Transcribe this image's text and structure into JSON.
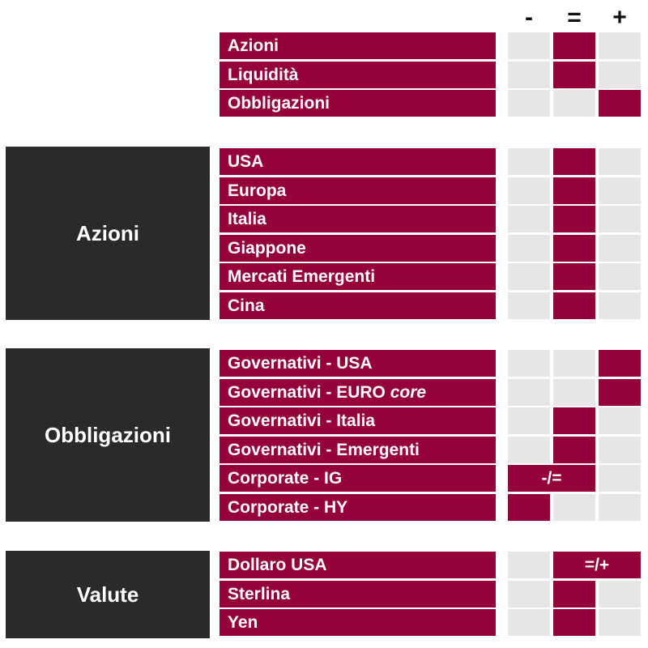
{
  "header": {
    "minus": "-",
    "equal": "=",
    "plus": "+"
  },
  "summary": [
    {
      "label": "Azioni",
      "marks": [
        "",
        "=",
        ""
      ]
    },
    {
      "label": "Liquidità",
      "marks": [
        "",
        "=",
        ""
      ]
    },
    {
      "label": "Obbligazioni",
      "marks": [
        "",
        "",
        "+"
      ]
    }
  ],
  "groups": [
    {
      "category": "Azioni",
      "rows": [
        {
          "label": "USA",
          "rating": "="
        },
        {
          "label": "Europa",
          "rating": "="
        },
        {
          "label": "Italia",
          "rating": "="
        },
        {
          "label": "Giappone",
          "rating": "="
        },
        {
          "label": "Mercati Emergenti",
          "rating": "="
        },
        {
          "label": "Cina",
          "rating": "="
        }
      ]
    },
    {
      "category": "Obbligazioni",
      "rows": [
        {
          "label": "Governativi - USA",
          "rating": "+"
        },
        {
          "label_main": "Governativi - EURO ",
          "label_italic": "core",
          "rating": "+"
        },
        {
          "label": "Governativi - Italia",
          "rating": "="
        },
        {
          "label": "Governativi - Emergenti",
          "rating": "="
        },
        {
          "label": "Corporate - IG",
          "rating": "-/=",
          "span_text": "-/="
        },
        {
          "label": "Corporate - HY",
          "rating": "-"
        }
      ]
    },
    {
      "category": "Valute",
      "rows": [
        {
          "label": "Dollaro USA",
          "rating": "=/+",
          "span_text": "=/+"
        },
        {
          "label": "Sterlina",
          "rating": "="
        },
        {
          "label": "Yen",
          "rating": "="
        }
      ]
    }
  ]
}
